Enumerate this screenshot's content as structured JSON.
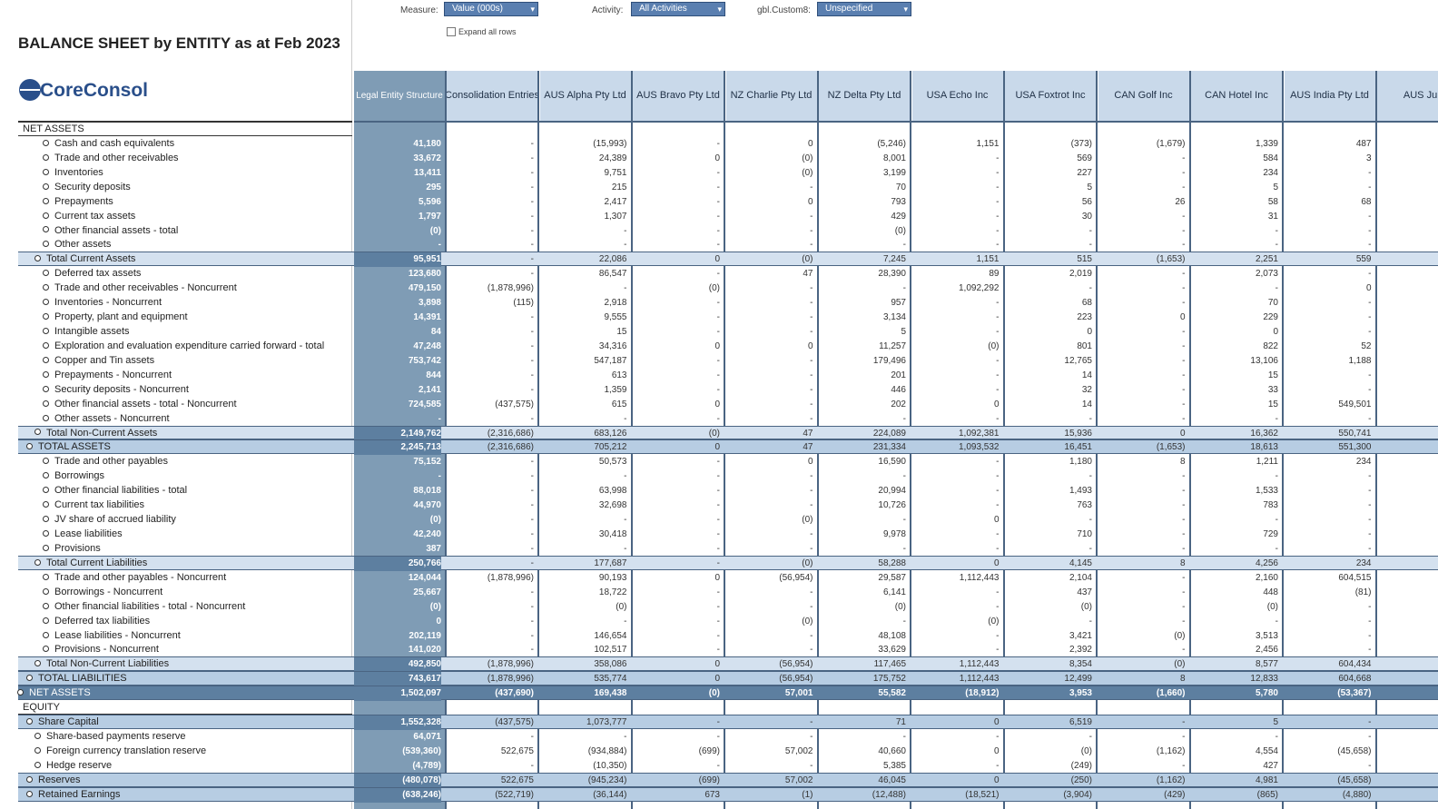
{
  "filters": [
    {
      "label": "Measure:",
      "value": "Value (000s)"
    },
    {
      "label": "Activity:",
      "value": "All Activities"
    },
    {
      "label": "gbl.Custom8:",
      "value": "Unspecified"
    }
  ],
  "expand_label": "Expand all rows",
  "title": "BALANCE SHEET by ENTITY as at Feb 2023",
  "logo": "CoreConsol",
  "table": {
    "columns": [
      "Legal Entity Structure",
      "Consolidation Entries",
      "AUS Alpha Pty Ltd",
      "AUS Bravo Pty Ltd",
      "NZ Charlie Pty Ltd",
      "NZ Delta Pty Ltd",
      "USA Echo Inc",
      "USA Foxtrot Inc",
      "CAN Golf Inc",
      "CAN Hotel Inc",
      "AUS India Pty Ltd",
      "AUS Juli"
    ],
    "rows": [
      {
        "label": "NET ASSETS"
      },
      {
        "label": "Cash and cash equivalents",
        "values": [
          "41,180",
          "-",
          "(15,993)",
          "-",
          "0",
          "(5,246)",
          "1,151",
          "(373)",
          "(1,679)",
          "1,339",
          "487"
        ]
      },
      {
        "label": "Trade and other receivables",
        "values": [
          "33,672",
          "-",
          "24,389",
          "0",
          "(0)",
          "8,001",
          "-",
          "569",
          "-",
          "584",
          "3"
        ]
      },
      {
        "label": "Inventories",
        "values": [
          "13,411",
          "-",
          "9,751",
          "-",
          "(0)",
          "3,199",
          "-",
          "227",
          "-",
          "234",
          "-"
        ]
      },
      {
        "label": "Security deposits",
        "values": [
          "295",
          "-",
          "215",
          "-",
          "-",
          "70",
          "-",
          "5",
          "-",
          "5",
          "-"
        ]
      },
      {
        "label": "Prepayments",
        "values": [
          "5,596",
          "-",
          "2,417",
          "-",
          "0",
          "793",
          "-",
          "56",
          "26",
          "58",
          "68"
        ]
      },
      {
        "label": "Current tax assets",
        "values": [
          "1,797",
          "-",
          "1,307",
          "-",
          "-",
          "429",
          "-",
          "30",
          "-",
          "31",
          "-"
        ]
      },
      {
        "label": "Other financial assets - total",
        "values": [
          "(0)",
          "-",
          "-",
          "-",
          "-",
          "(0)",
          "-",
          "-",
          "-",
          "-",
          "-"
        ]
      },
      {
        "label": "Other assets",
        "values": [
          "-",
          "-",
          "-",
          "-",
          "-",
          "-",
          "-",
          "-",
          "-",
          "-",
          "-"
        ]
      },
      {
        "label": "Total Current Assets",
        "values": [
          "95,951",
          "-",
          "22,086",
          "0",
          "(0)",
          "7,245",
          "1,151",
          "515",
          "(1,653)",
          "2,251",
          "559"
        ]
      },
      {
        "label": "Deferred tax assets",
        "values": [
          "123,680",
          "-",
          "86,547",
          "-",
          "47",
          "28,390",
          "89",
          "2,019",
          "-",
          "2,073",
          "-"
        ]
      },
      {
        "label": "Trade and other receivables - Noncurrent",
        "values": [
          "479,150",
          "(1,878,996)",
          "-",
          "(0)",
          "-",
          "-",
          "1,092,292",
          "-",
          "-",
          "-",
          "0"
        ]
      },
      {
        "label": "Inventories - Noncurrent",
        "values": [
          "3,898",
          "(115)",
          "2,918",
          "-",
          "-",
          "957",
          "-",
          "68",
          "-",
          "70",
          "-"
        ]
      },
      {
        "label": "Property, plant and equipment",
        "values": [
          "14,391",
          "-",
          "9,555",
          "-",
          "-",
          "3,134",
          "-",
          "223",
          "0",
          "229",
          "-"
        ]
      },
      {
        "label": "Intangible assets",
        "values": [
          "84",
          "-",
          "15",
          "-",
          "-",
          "5",
          "-",
          "0",
          "-",
          "0",
          "-"
        ]
      },
      {
        "label": "Exploration and evaluation expenditure carried forward - total",
        "values": [
          "47,248",
          "-",
          "34,316",
          "0",
          "0",
          "11,257",
          "(0)",
          "801",
          "-",
          "822",
          "52"
        ]
      },
      {
        "label": "Copper and Tin assets",
        "values": [
          "753,742",
          "-",
          "547,187",
          "-",
          "-",
          "179,496",
          "-",
          "12,765",
          "-",
          "13,106",
          "1,188"
        ]
      },
      {
        "label": "Prepayments - Noncurrent",
        "values": [
          "844",
          "-",
          "613",
          "-",
          "-",
          "201",
          "-",
          "14",
          "-",
          "15",
          "-"
        ]
      },
      {
        "label": "Security deposits - Noncurrent",
        "values": [
          "2,141",
          "-",
          "1,359",
          "-",
          "-",
          "446",
          "-",
          "32",
          "-",
          "33",
          "-"
        ]
      },
      {
        "label": "Other financial assets - total - Noncurrent",
        "values": [
          "724,585",
          "(437,575)",
          "615",
          "0",
          "-",
          "202",
          "0",
          "14",
          "-",
          "15",
          "549,501"
        ]
      },
      {
        "label": "Other assets - Noncurrent",
        "values": [
          "-",
          "-",
          "-",
          "-",
          "-",
          "-",
          "-",
          "-",
          "-",
          "-",
          "-"
        ]
      },
      {
        "label": "Total Non-Current Assets",
        "values": [
          "2,149,762",
          "(2,316,686)",
          "683,126",
          "(0)",
          "47",
          "224,089",
          "1,092,381",
          "15,936",
          "0",
          "16,362",
          "550,741"
        ]
      },
      {
        "label": "TOTAL ASSETS",
        "values": [
          "2,245,713",
          "(2,316,686)",
          "705,212",
          "0",
          "47",
          "231,334",
          "1,093,532",
          "16,451",
          "(1,653)",
          "18,613",
          "551,300"
        ]
      },
      {
        "label": "Trade and other payables",
        "values": [
          "75,152",
          "-",
          "50,573",
          "-",
          "0",
          "16,590",
          "-",
          "1,180",
          "8",
          "1,211",
          "234"
        ]
      },
      {
        "label": "Borrowings",
        "values": [
          "-",
          "-",
          "-",
          "-",
          "-",
          "-",
          "-",
          "-",
          "-",
          "-",
          "-"
        ]
      },
      {
        "label": "Other financial liabilities - total",
        "values": [
          "88,018",
          "-",
          "63,998",
          "-",
          "-",
          "20,994",
          "-",
          "1,493",
          "-",
          "1,533",
          "-"
        ]
      },
      {
        "label": "Current tax liabilities",
        "values": [
          "44,970",
          "-",
          "32,698",
          "-",
          "-",
          "10,726",
          "-",
          "763",
          "-",
          "783",
          "-"
        ]
      },
      {
        "label": "JV share of accrued liability",
        "values": [
          "(0)",
          "-",
          "-",
          "-",
          "(0)",
          "-",
          "0",
          "-",
          "-",
          "-",
          "-"
        ]
      },
      {
        "label": "Lease liabilities",
        "values": [
          "42,240",
          "-",
          "30,418",
          "-",
          "-",
          "9,978",
          "-",
          "710",
          "-",
          "729",
          "-"
        ]
      },
      {
        "label": "Provisions",
        "values": [
          "387",
          "-",
          "-",
          "-",
          "-",
          "-",
          "-",
          "-",
          "-",
          "-",
          "-"
        ]
      },
      {
        "label": "Total Current Liabilities",
        "values": [
          "250,766",
          "-",
          "177,687",
          "-",
          "(0)",
          "58,288",
          "0",
          "4,145",
          "8",
          "4,256",
          "234"
        ]
      },
      {
        "label": "Trade and other payables - Noncurrent",
        "values": [
          "124,044",
          "(1,878,996)",
          "90,193",
          "0",
          "(56,954)",
          "29,587",
          "1,112,443",
          "2,104",
          "-",
          "2,160",
          "604,515"
        ]
      },
      {
        "label": "Borrowings - Noncurrent",
        "values": [
          "25,667",
          "-",
          "18,722",
          "-",
          "-",
          "6,141",
          "-",
          "437",
          "-",
          "448",
          "(81)"
        ]
      },
      {
        "label": "Other financial liabilities - total - Noncurrent",
        "values": [
          "(0)",
          "-",
          "(0)",
          "-",
          "-",
          "(0)",
          "-",
          "(0)",
          "-",
          "(0)",
          "-"
        ]
      },
      {
        "label": "Deferred tax liabilities",
        "values": [
          "0",
          "-",
          "-",
          "-",
          "(0)",
          "-",
          "(0)",
          "-",
          "-",
          "-",
          "-"
        ]
      },
      {
        "label": "Lease liabilities - Noncurrent",
        "values": [
          "202,119",
          "-",
          "146,654",
          "-",
          "-",
          "48,108",
          "-",
          "3,421",
          "(0)",
          "3,513",
          "-"
        ]
      },
      {
        "label": "Provisions - Noncurrent",
        "values": [
          "141,020",
          "-",
          "102,517",
          "-",
          "-",
          "33,629",
          "-",
          "2,392",
          "-",
          "2,456",
          "-"
        ]
      },
      {
        "label": "Total Non-Current Liabilities",
        "values": [
          "492,850",
          "(1,878,996)",
          "358,086",
          "0",
          "(56,954)",
          "117,465",
          "1,112,443",
          "8,354",
          "(0)",
          "8,577",
          "604,434"
        ]
      },
      {
        "label": "TOTAL LIABILITIES",
        "values": [
          "743,617",
          "(1,878,996)",
          "535,774",
          "0",
          "(56,954)",
          "175,752",
          "1,112,443",
          "12,499",
          "8",
          "12,833",
          "604,668"
        ]
      },
      {
        "label": "NET ASSETS",
        "values": [
          "1,502,097",
          "(437,690)",
          "169,438",
          "(0)",
          "57,001",
          "55,582",
          "(18,912)",
          "3,953",
          "(1,660)",
          "5,780",
          "(53,367)"
        ]
      },
      {
        "label": "EQUITY"
      },
      {
        "label": "Share Capital",
        "values": [
          "1,552,328",
          "(437,575)",
          "1,073,777",
          "-",
          "-",
          "71",
          "0",
          "6,519",
          "-",
          "5",
          "-"
        ]
      },
      {
        "label": "Share-based payments reserve",
        "values": [
          "64,071",
          "-",
          "-",
          "-",
          "-",
          "-",
          "-",
          "-",
          "-",
          "-",
          "-"
        ]
      },
      {
        "label": "Foreign currency translation reserve",
        "values": [
          "(539,360)",
          "522,675",
          "(934,884)",
          "(699)",
          "57,002",
          "40,660",
          "0",
          "(0)",
          "(1,162)",
          "4,554",
          "(45,658)"
        ]
      },
      {
        "label": "Hedge reserve",
        "values": [
          "(4,789)",
          "-",
          "(10,350)",
          "-",
          "-",
          "5,385",
          "-",
          "(249)",
          "-",
          "427",
          "-"
        ]
      },
      {
        "label": "Reserves",
        "values": [
          "(480,078)",
          "522,675",
          "(945,234)",
          "(699)",
          "57,002",
          "46,045",
          "0",
          "(250)",
          "(1,162)",
          "4,981",
          "(45,658)"
        ]
      },
      {
        "label": "Retained Earnings",
        "values": [
          "(638,246)",
          "(522,719)",
          "(36,144)",
          "673",
          "(1)",
          "(12,488)",
          "(18,521)",
          "(3,904)",
          "(429)",
          "(865)",
          "(4,880)"
        ]
      }
    ]
  }
}
